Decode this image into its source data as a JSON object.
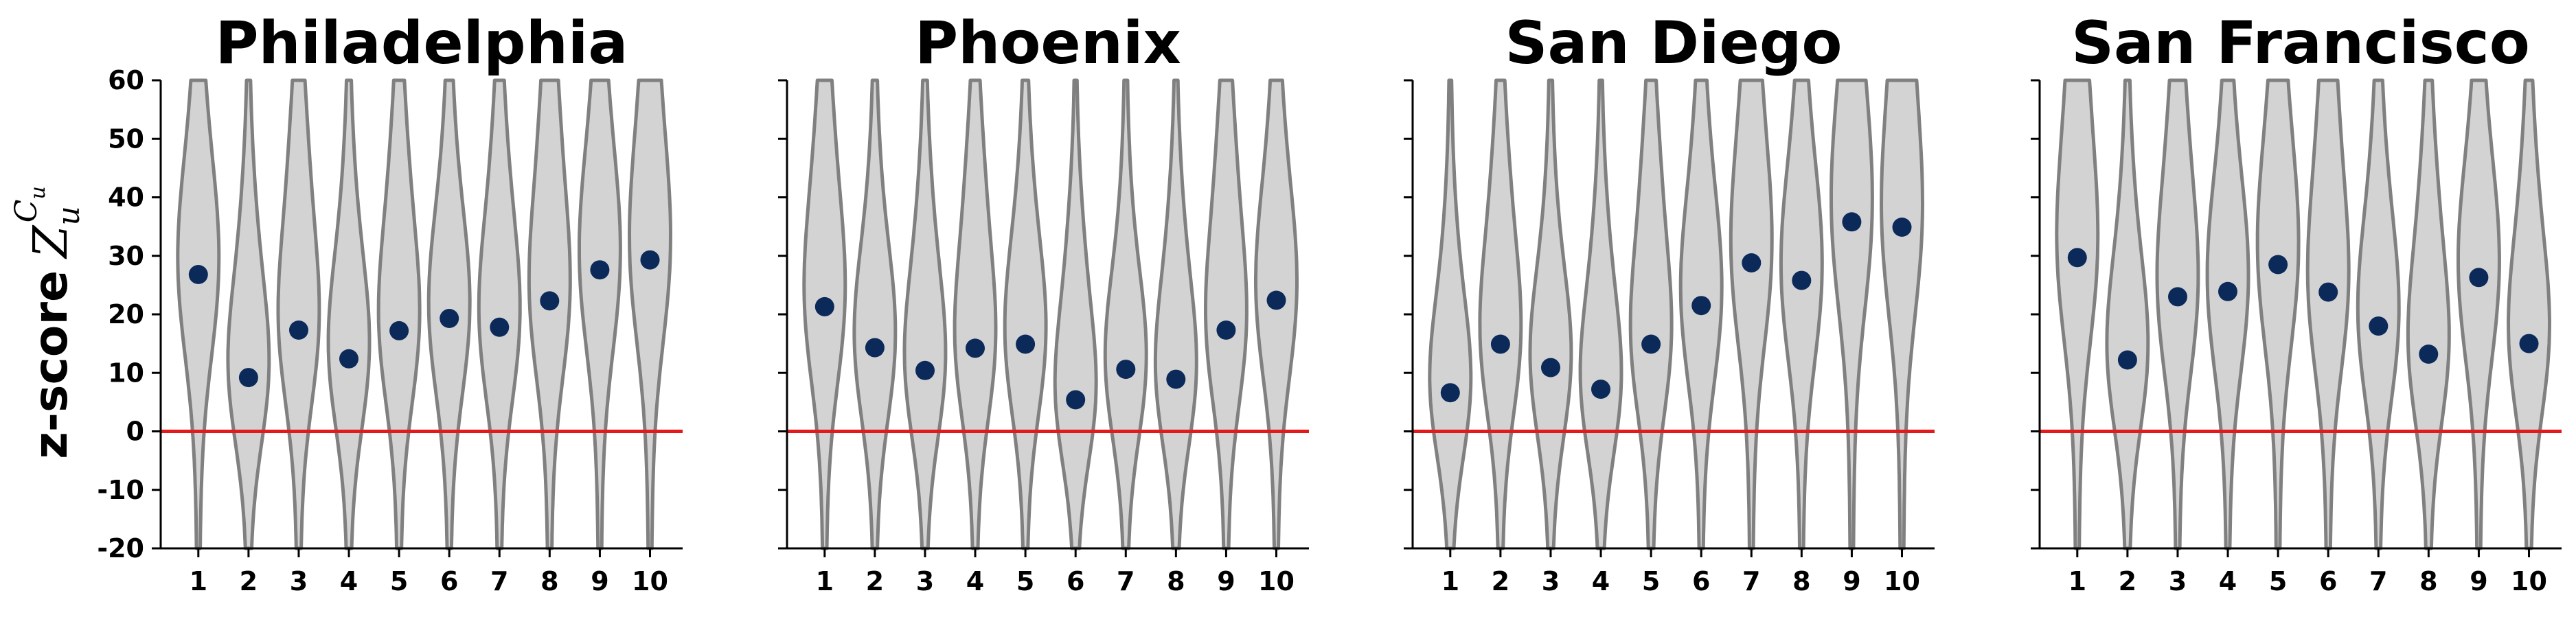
{
  "chart_data": [
    {
      "type": "violin",
      "title": "Philadelphia",
      "categories": [
        "1",
        "2",
        "3",
        "4",
        "5",
        "6",
        "7",
        "8",
        "9",
        "10"
      ],
      "values": [
        26.8,
        9.2,
        17.3,
        12.4,
        17.2,
        19.3,
        17.8,
        22.3,
        27.6,
        29.3
      ],
      "ylim": [
        -20,
        60
      ],
      "yticks": [
        "-20",
        "-10",
        "0",
        "10",
        "20",
        "30",
        "40",
        "50",
        "60"
      ],
      "ylabel": "z-score",
      "ylabel_symbol": "Z",
      "ylabel_sub": "u",
      "ylabel_sup": "C",
      "ylabel_sup_sub": "u",
      "reference_line": 0,
      "show_yticklabels": true
    },
    {
      "type": "violin",
      "title": "Phoenix",
      "categories": [
        "1",
        "2",
        "3",
        "4",
        "5",
        "6",
        "7",
        "8",
        "9",
        "10"
      ],
      "values": [
        21.3,
        14.3,
        10.4,
        14.2,
        14.9,
        5.4,
        10.6,
        8.9,
        17.3,
        22.4
      ],
      "ylim": [
        -20,
        60
      ],
      "reference_line": 0,
      "show_yticklabels": false
    },
    {
      "type": "violin",
      "title": "San Diego",
      "categories": [
        "1",
        "2",
        "3",
        "4",
        "5",
        "6",
        "7",
        "8",
        "9",
        "10"
      ],
      "values": [
        6.6,
        14.9,
        10.9,
        7.2,
        14.9,
        21.5,
        28.8,
        25.8,
        35.8,
        34.9
      ],
      "ylim": [
        -20,
        60
      ],
      "reference_line": 0,
      "show_yticklabels": false
    },
    {
      "type": "violin",
      "title": "San Francisco",
      "categories": [
        "1",
        "2",
        "3",
        "4",
        "5",
        "6",
        "7",
        "8",
        "9",
        "10"
      ],
      "values": [
        29.7,
        12.2,
        23.0,
        23.9,
        28.5,
        23.8,
        18.0,
        13.2,
        26.3,
        15.0
      ],
      "ylim": [
        -20,
        60
      ],
      "reference_line": 0,
      "show_yticklabels": false
    }
  ],
  "colors": {
    "violin_fill": "#d3d3d3",
    "violin_edge": "#808080",
    "point": "#0b2a5a",
    "reference_line": "#e31a1c"
  }
}
